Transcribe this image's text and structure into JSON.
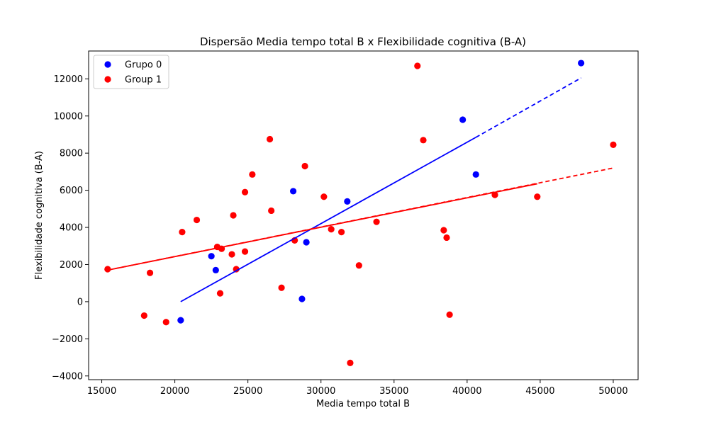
{
  "chart_data": {
    "type": "scatter",
    "title": "Dispersão Media tempo total B x Flexibilidade cognitiva (B-A)",
    "xlabel": "Media tempo total B",
    "ylabel": "Flexibilidade cognitiva (B-A)",
    "xlim": [
      14100,
      51700
    ],
    "ylim": [
      -4200,
      13500
    ],
    "x_ticks": [
      15000,
      20000,
      25000,
      30000,
      35000,
      40000,
      45000,
      50000
    ],
    "y_ticks": [
      -4000,
      -2000,
      0,
      2000,
      4000,
      6000,
      8000,
      10000,
      12000
    ],
    "x_tick_labels": [
      "15000",
      "20000",
      "25000",
      "30000",
      "35000",
      "40000",
      "45000",
      "50000"
    ],
    "y_tick_labels": [
      "−4000",
      "−2000",
      "0",
      "2000",
      "4000",
      "6000",
      "8000",
      "10000",
      "12000"
    ],
    "grid": false,
    "legend_position": "top-left",
    "series": [
      {
        "name": "Grupo 0",
        "color": "#0000ff",
        "points": [
          [
            20400,
            -1000
          ],
          [
            22500,
            2450
          ],
          [
            22800,
            1700
          ],
          [
            28100,
            5950
          ],
          [
            28700,
            150
          ],
          [
            29000,
            3200
          ],
          [
            31800,
            5400
          ],
          [
            39700,
            9800
          ],
          [
            40600,
            6850
          ],
          [
            47800,
            12850
          ]
        ],
        "trend": {
          "solid": [
            [
              20400,
              0
            ],
            [
              40600,
              8850
            ]
          ],
          "dashed": [
            [
              40600,
              8850
            ],
            [
              47800,
              12050
            ]
          ]
        }
      },
      {
        "name": "Group 1",
        "color": "#ff0000",
        "points": [
          [
            15400,
            1750
          ],
          [
            17900,
            -750
          ],
          [
            18300,
            1550
          ],
          [
            19400,
            -1100
          ],
          [
            20500,
            3750
          ],
          [
            21500,
            4400
          ],
          [
            22900,
            2950
          ],
          [
            23100,
            450
          ],
          [
            23200,
            2850
          ],
          [
            23900,
            2550
          ],
          [
            24000,
            4650
          ],
          [
            24200,
            1750
          ],
          [
            24800,
            2700
          ],
          [
            24800,
            5900
          ],
          [
            25300,
            6850
          ],
          [
            26500,
            8750
          ],
          [
            26600,
            4900
          ],
          [
            27300,
            750
          ],
          [
            28200,
            3300
          ],
          [
            28900,
            7300
          ],
          [
            30200,
            5650
          ],
          [
            30700,
            3900
          ],
          [
            31400,
            3750
          ],
          [
            32000,
            -3300
          ],
          [
            32600,
            1950
          ],
          [
            33800,
            4300
          ],
          [
            36600,
            12700
          ],
          [
            37000,
            8700
          ],
          [
            38400,
            3850
          ],
          [
            38600,
            3450
          ],
          [
            38800,
            -700
          ],
          [
            41900,
            5750
          ],
          [
            44800,
            5650
          ],
          [
            50000,
            8450
          ]
        ],
        "trend": {
          "solid": [
            [
              15400,
              1700
            ],
            [
              44800,
              6350
            ]
          ],
          "dashed": [
            [
              15400,
              1700
            ],
            [
              50000,
              7200
            ]
          ]
        }
      }
    ]
  }
}
